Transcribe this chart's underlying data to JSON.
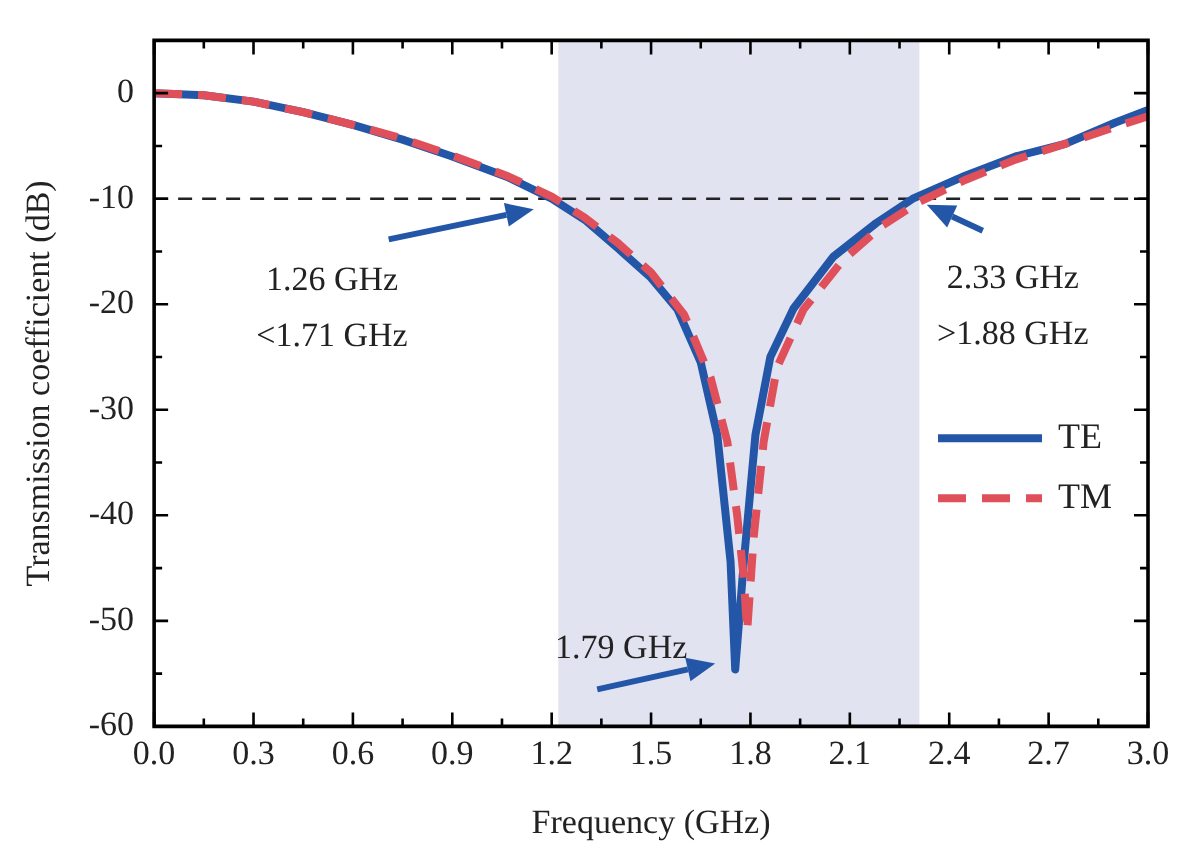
{
  "chart_data": {
    "type": "line",
    "xlabel": "Frequency (GHz)",
    "ylabel": "Transmission coefficient (dB)",
    "xlim": [
      0,
      3
    ],
    "xticks": [
      {
        "value": 0,
        "label": "0.0"
      },
      0.3,
      0.6,
      0.9,
      1.2,
      1.5,
      1.8,
      2.1,
      2.4,
      2.7,
      {
        "value": 3,
        "label": "3.0"
      }
    ],
    "ylim": [
      -60,
      5
    ],
    "yticks": [
      -60,
      -50,
      -40,
      -30,
      -20,
      -10,
      0
    ],
    "series": [
      {
        "name": "TE",
        "color": "#2456a8",
        "line_style": "solid",
        "x": [
          0,
          0.15,
          0.3,
          0.45,
          0.6,
          0.75,
          0.9,
          1.07,
          1.2,
          1.3,
          1.4,
          1.5,
          1.58,
          1.65,
          1.7,
          1.74,
          1.754,
          1.78,
          1.815,
          1.86,
          1.93,
          2.05,
          2.18,
          2.29,
          2.45,
          2.6,
          2.75,
          2.9,
          3.0
        ],
        "values": [
          0,
          -0.2,
          -0.8,
          -1.8,
          -3,
          -4.4,
          -6,
          -8,
          -10,
          -12,
          -14.7,
          -17.5,
          -20.5,
          -25.5,
          -32.4,
          -44.4,
          -54.6,
          -44.4,
          -32.4,
          -25,
          -20.4,
          -15.5,
          -12.3,
          -10,
          -7.8,
          -6,
          -4.8,
          -2.8,
          -1.6
        ]
      },
      {
        "name": "TM",
        "color": "#e0505a",
        "line_style": "dashed",
        "x": [
          0,
          0.15,
          0.3,
          0.45,
          0.6,
          0.75,
          0.9,
          1.07,
          1.2,
          1.3,
          1.4,
          1.5,
          1.6,
          1.68,
          1.73,
          1.76,
          1.78,
          1.79,
          1.81,
          1.84,
          1.88,
          1.96,
          2.08,
          2.2,
          2.31,
          2.45,
          2.6,
          2.75,
          2.9,
          3.0
        ],
        "values": [
          0,
          -0.2,
          -0.8,
          -1.8,
          -3,
          -4.3,
          -5.9,
          -7.9,
          -9.8,
          -11.8,
          -14.2,
          -17,
          -21,
          -27,
          -33,
          -40,
          -46,
          -51,
          -42,
          -33,
          -26,
          -20.5,
          -15.8,
          -12.5,
          -10.3,
          -8.2,
          -6.3,
          -4.8,
          -3.2,
          -2.2
        ]
      }
    ],
    "ref_lines": [
      {
        "axis": "y",
        "value": -10,
        "color": "#222222",
        "line_style": "dashed"
      }
    ],
    "bands": [
      {
        "axis": "x",
        "from": 1.22,
        "to": 2.31,
        "color": "#e1e3f1"
      }
    ],
    "annotations": [
      "1.26 GHz",
      "<1.71 GHz",
      {
        "text": "2.33 GHz",
        "x": 2.29,
        "y": -10
      },
      ">1.88 GHz",
      {
        "text": "1.79 GHz",
        "x": 1.754,
        "y": -54.6
      }
    ],
    "legend": "right",
    "grid": false
  }
}
